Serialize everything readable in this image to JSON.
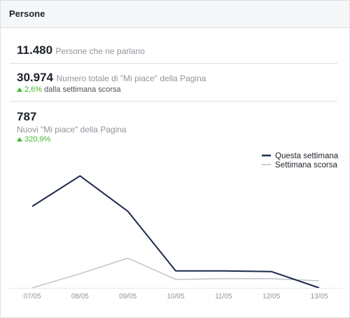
{
  "header": {
    "title": "Persone"
  },
  "stats": [
    {
      "value": "11.480",
      "label": "Persone che ne parlano"
    },
    {
      "value": "30.974",
      "label": "Numero totale di \"Mi piace\" della Pagina",
      "trend": "2,6%",
      "trend_suffix": "dalla settimana scorsa"
    },
    {
      "value": "787",
      "label": "Nuovi \"Mi piace\" della Pagina",
      "trend": "320,9%"
    }
  ],
  "colors": {
    "this_week": "#1c2a4a",
    "last_week": "#b8bcc2",
    "trend_up": "#42b72a"
  },
  "chart_data": {
    "type": "line",
    "categories": [
      "07/05",
      "08/05",
      "09/05",
      "10/05",
      "11/05",
      "12/05",
      "13/05"
    ],
    "series": [
      {
        "name": "Questa settimana",
        "values": [
          115,
          158,
          108,
          24,
          24,
          23,
          0
        ],
        "color": "#1c2a4a"
      },
      {
        "name": "Settimana scorsa",
        "values": [
          0,
          20,
          42,
          12,
          13,
          13,
          10
        ],
        "color": "#b8bcc2"
      }
    ],
    "ylim": [
      0,
      170
    ],
    "legend": "top-right",
    "grid": false
  }
}
